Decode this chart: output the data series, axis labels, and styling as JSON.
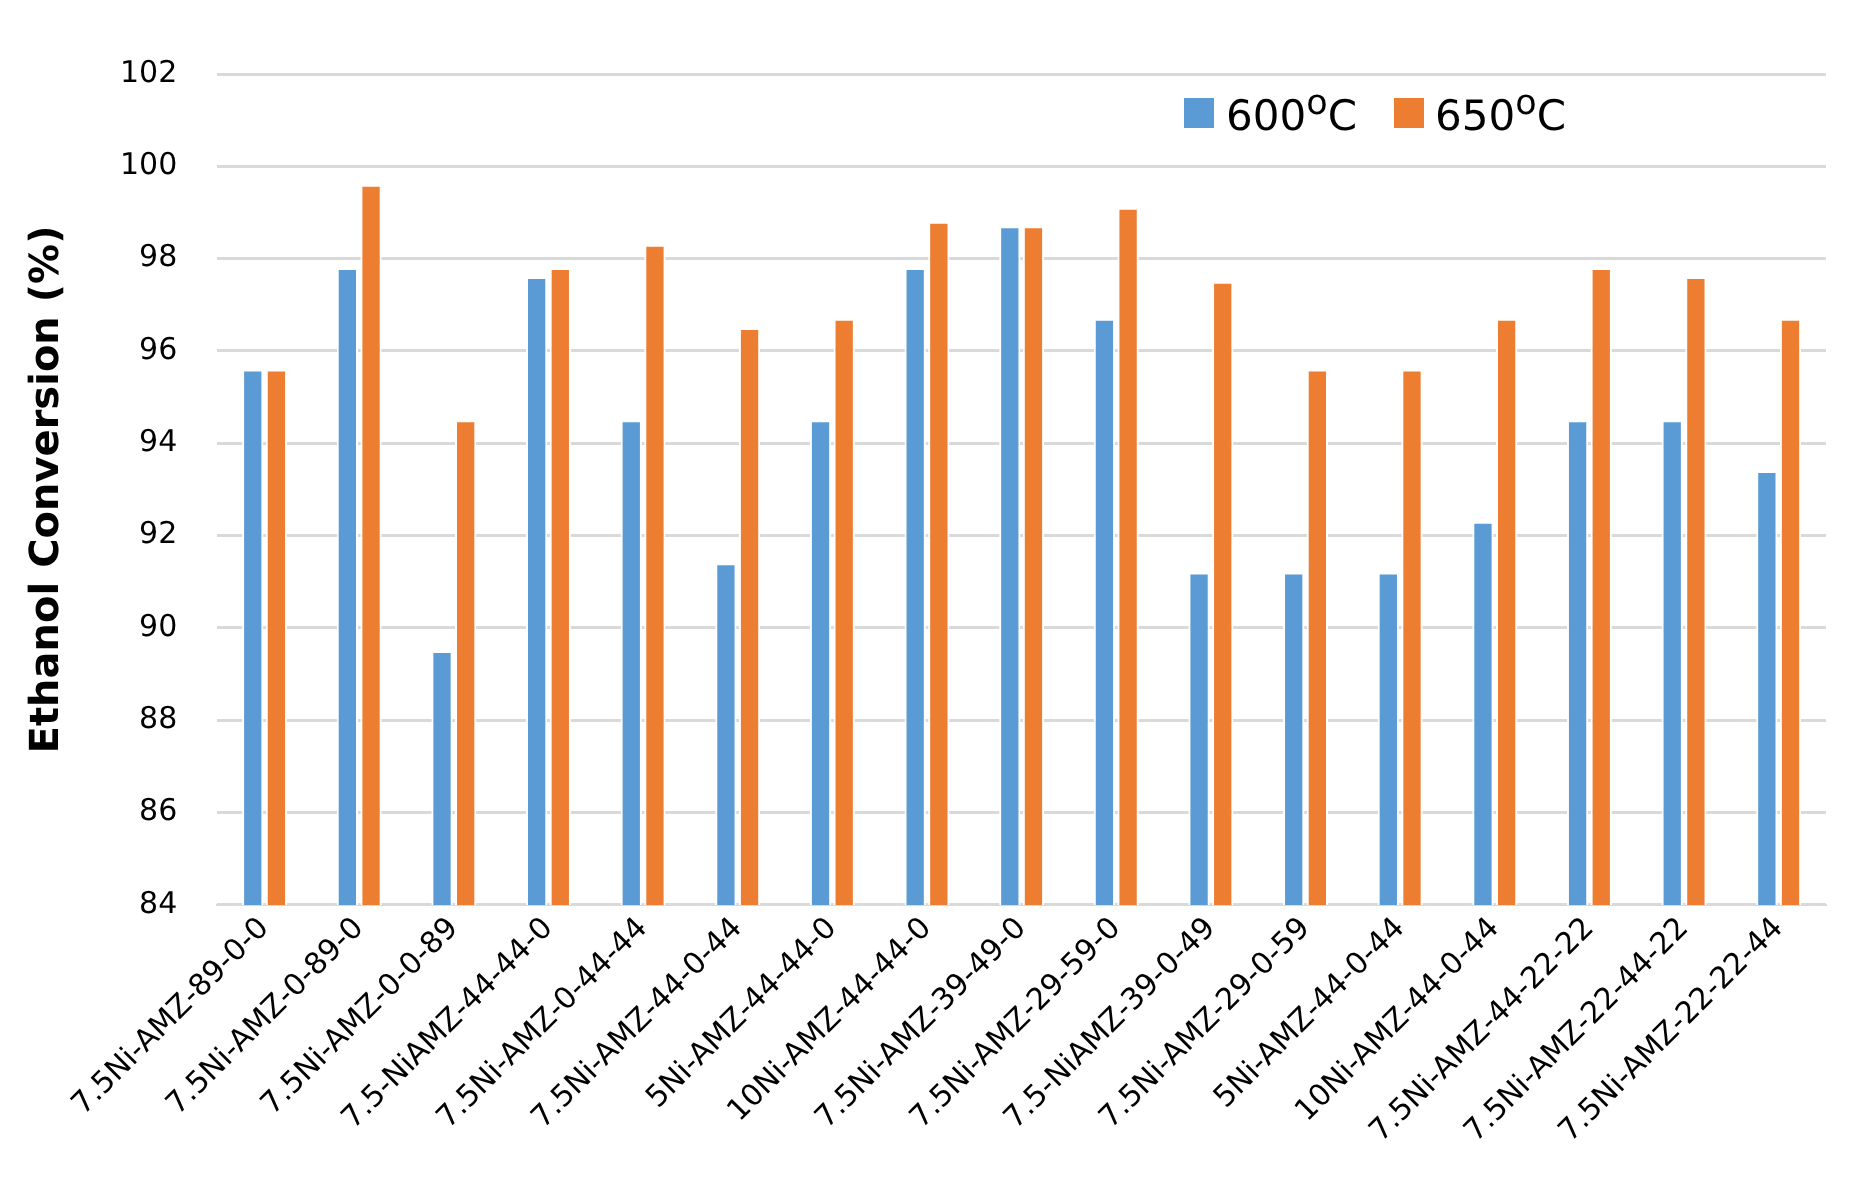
{
  "chart_data": {
    "type": "bar",
    "ylabel": "Ethanol Conversion (%)",
    "categories": [
      "7.5Ni-AMZ-89-0-0",
      "7.5Ni-AMZ-0-89-0",
      "7.5Ni-AMZ-0-0-89",
      "7.5-NiAMZ-44-44-0",
      "7.5Ni-AMZ-0-44-44",
      "7.5Ni-AMZ-44-0-44",
      "5Ni-AMZ-44-44-0",
      "10Ni-AMZ-44-44-0",
      "7.5Ni-AMZ-39-49-0",
      "7.5Ni-AMZ-29-59-0",
      "7.5-NiAMZ-39-0-49",
      "7.5Ni-AMZ-29-0-59",
      "5Ni-AMZ-44-0-44",
      "10Ni-AMZ-44-0-44",
      "7.5Ni-AMZ-44-22-22",
      "7.5Ni-AMZ-22-44-22",
      "7.5Ni-AMZ-22-22-44"
    ],
    "series": [
      {
        "name": "600$^{o}$C",
        "color": "#5b9bd5",
        "values": [
          95.6,
          97.8,
          89.5,
          97.6,
          94.5,
          91.4,
          94.5,
          97.8,
          98.7,
          96.7,
          91.2,
          91.2,
          91.2,
          92.3,
          94.5,
          94.5,
          93.4
        ]
      },
      {
        "name": "650$^{o}$C",
        "color": "#ed7d31",
        "values": [
          95.6,
          99.6,
          94.5,
          97.8,
          98.3,
          96.5,
          96.7,
          98.8,
          98.7,
          99.1,
          97.5,
          95.6,
          95.6,
          96.7,
          97.8,
          97.6,
          96.7
        ]
      }
    ],
    "ylim": [
      84,
      102
    ],
    "yticks": [
      84,
      86,
      88,
      90,
      92,
      94,
      96,
      98,
      100,
      102
    ],
    "grid": "y",
    "legend": "top right"
  }
}
